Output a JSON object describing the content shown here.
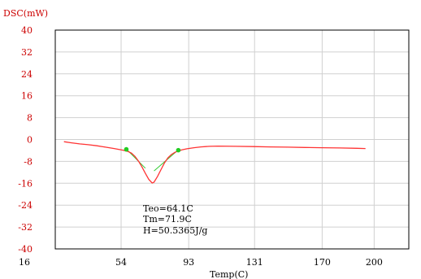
{
  "chart_data": {
    "type": "line",
    "ylabel": "DSC(mW)",
    "xlabel": "Temp(C)",
    "xlim": [
      16,
      220
    ],
    "ylim": [
      -40,
      40
    ],
    "x_ticks": [
      16,
      54,
      93,
      131,
      170,
      200
    ],
    "x_tick_labels": [
      "16",
      "54",
      "93",
      "131",
      "170",
      "200"
    ],
    "y_ticks": [
      40,
      32,
      24,
      16,
      8,
      0,
      -8,
      -16,
      -24,
      -32,
      -40
    ],
    "y_tick_labels": [
      "40",
      "32",
      "24",
      "16",
      "8",
      "0",
      "-8",
      "-16",
      "-24",
      "-32",
      "-40"
    ],
    "grid": true,
    "colors": {
      "curve": "#ff3333",
      "tangent": "#33cc33",
      "marker": "#22cc22",
      "y_ticks": "#cc0000",
      "grid": "#d0d0d0"
    },
    "series": [
      {
        "color": "#ff3333",
        "x": [
          21,
          25,
          30,
          35,
          40,
          45,
          50,
          55,
          58,
          60,
          62,
          64,
          66,
          68,
          70,
          71.9,
          73,
          75,
          77,
          79,
          81,
          83,
          85,
          87,
          89,
          92,
          96,
          100,
          105,
          110,
          120,
          130,
          140,
          150,
          160,
          170,
          180,
          190,
          195
        ],
        "y": [
          -0.8,
          -1.2,
          -1.6,
          -1.9,
          -2.3,
          -2.8,
          -3.3,
          -3.9,
          -4.4,
          -5.0,
          -6.2,
          -7.9,
          -10.0,
          -12.4,
          -14.6,
          -15.9,
          -15.6,
          -13.5,
          -11.0,
          -8.6,
          -6.7,
          -5.5,
          -4.7,
          -4.2,
          -3.8,
          -3.4,
          -3.0,
          -2.7,
          -2.5,
          -2.4,
          -2.5,
          -2.6,
          -2.7,
          -2.8,
          -2.9,
          -3.0,
          -3.1,
          -3.2,
          -3.3
        ]
      }
    ],
    "tangent_lines": [
      {
        "x": [
          57,
          68
        ],
        "y": [
          -3.5,
          -10.5
        ]
      },
      {
        "x": [
          73,
          87
        ],
        "y": [
          -11.5,
          -3.8
        ]
      }
    ],
    "markers": [
      {
        "x": 57,
        "y": -3.6
      },
      {
        "x": 87,
        "y": -3.9
      }
    ],
    "annotations": [
      "Teo=64.1C",
      "Tm=71.9C",
      "H=50.5365J/g"
    ]
  }
}
